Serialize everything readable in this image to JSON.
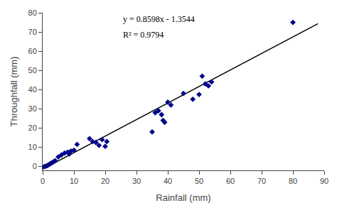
{
  "chart_data": {
    "type": "scatter",
    "xlabel": "Rainfall (mm)",
    "ylabel": "Throughfall (mm)",
    "series": [
      {
        "type": "scatter",
        "color": "#00008B",
        "marker": "diamond",
        "x": [
          0.5,
          1.0,
          1.5,
          2.0,
          2.5,
          3.0,
          3.5,
          4.0,
          5.0,
          6.0,
          7.0,
          8.0,
          8.5,
          9.0,
          10.0,
          11.0,
          15.0,
          16.0,
          17.0,
          18.0,
          19.0,
          20.0,
          20.5,
          35.0,
          36.0,
          37.0,
          38.0,
          38.5,
          39.0,
          40.0,
          41.0,
          45.0,
          48.0,
          50.0,
          51.0,
          52.0,
          53.0,
          54.0,
          80.0
        ],
        "values": [
          0.0,
          0.2,
          0.5,
          1.0,
          1.5,
          2.0,
          2.5,
          3.0,
          5.0,
          6.0,
          7.0,
          7.5,
          6.5,
          8.0,
          8.5,
          11.5,
          14.5,
          13.0,
          12.5,
          11.0,
          14.0,
          10.5,
          13.0,
          18.0,
          28.0,
          29.0,
          27.0,
          24.0,
          23.0,
          33.5,
          32.0,
          38.0,
          35.0,
          37.5,
          47.0,
          43.0,
          42.0,
          44.0,
          75.0
        ]
      },
      {
        "type": "line",
        "color": "#000000",
        "line_style": "solid",
        "x": [
          0,
          88
        ],
        "values": [
          -1.3544,
          74.308
        ]
      }
    ],
    "annotations": [
      "y = 0.8598x - 1.3544",
      "R² = 0.9794"
    ],
    "xlim": [
      0,
      90
    ],
    "ylim": [
      -2,
      80
    ],
    "xticks": [
      0,
      10,
      20,
      30,
      40,
      50,
      60,
      70,
      80,
      90
    ],
    "yticks": [
      0,
      10,
      20,
      30,
      40,
      50,
      60,
      70,
      80
    ],
    "grid": false
  }
}
